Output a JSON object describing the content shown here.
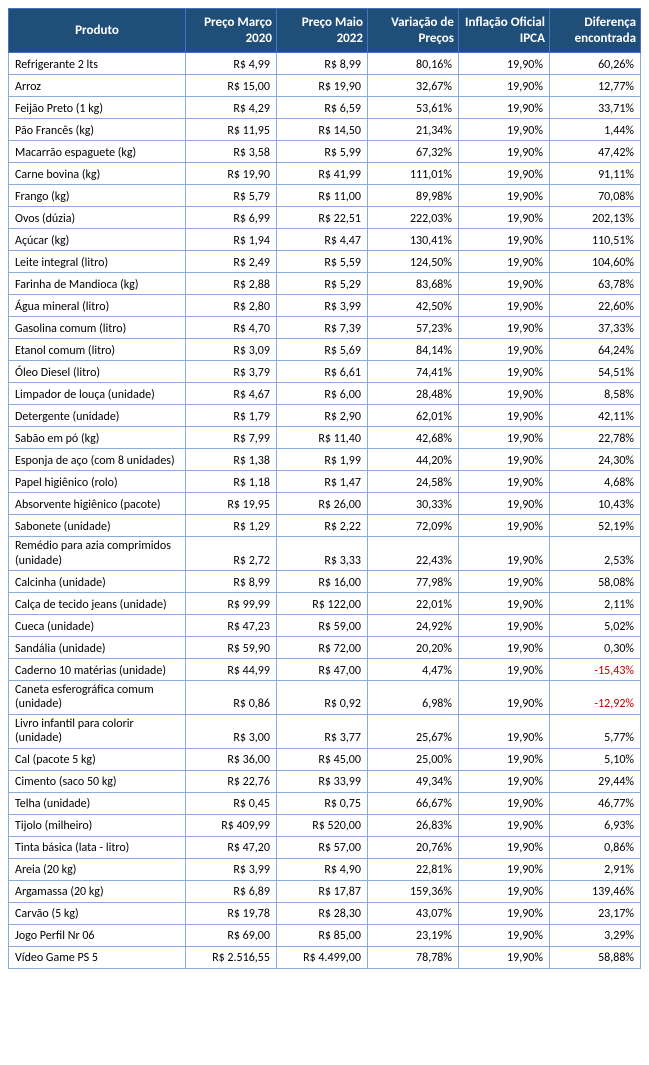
{
  "table": {
    "header_bg": "#1f4e79",
    "header_color": "#ffffff",
    "border_color": "#8ea9db",
    "negative_color": "#c00000",
    "columns": [
      "Produto",
      "Preço Março 2020",
      "Preço Maio 2022",
      "Variação de Preços",
      "Inflação Oficial IPCA",
      "Diferença encontrada"
    ],
    "rows": [
      {
        "produto": "Refrigerante 2 lts",
        "p2020": "R$ 4,99",
        "p2022": "R$ 8,99",
        "var": "80,16%",
        "ipca": "19,90%",
        "dif": "60,26%",
        "neg": false
      },
      {
        "produto": "Arroz",
        "p2020": "R$ 15,00",
        "p2022": "R$ 19,90",
        "var": "32,67%",
        "ipca": "19,90%",
        "dif": "12,77%",
        "neg": false
      },
      {
        "produto": "Feijão Preto (1 kg)",
        "p2020": "R$ 4,29",
        "p2022": "R$ 6,59",
        "var": "53,61%",
        "ipca": "19,90%",
        "dif": "33,71%",
        "neg": false
      },
      {
        "produto": "Pão Francês (kg)",
        "p2020": "R$ 11,95",
        "p2022": "R$ 14,50",
        "var": "21,34%",
        "ipca": "19,90%",
        "dif": "1,44%",
        "neg": false
      },
      {
        "produto": "Macarrão espaguete (kg)",
        "p2020": "R$ 3,58",
        "p2022": "R$ 5,99",
        "var": "67,32%",
        "ipca": "19,90%",
        "dif": "47,42%",
        "neg": false
      },
      {
        "produto": "Carne bovina (kg)",
        "p2020": "R$ 19,90",
        "p2022": "R$ 41,99",
        "var": "111,01%",
        "ipca": "19,90%",
        "dif": "91,11%",
        "neg": false
      },
      {
        "produto": "Frango (kg)",
        "p2020": "R$ 5,79",
        "p2022": "R$ 11,00",
        "var": "89,98%",
        "ipca": "19,90%",
        "dif": "70,08%",
        "neg": false
      },
      {
        "produto": "Ovos (dúzia)",
        "p2020": "R$ 6,99",
        "p2022": "R$ 22,51",
        "var": "222,03%",
        "ipca": "19,90%",
        "dif": "202,13%",
        "neg": false
      },
      {
        "produto": "Açúcar (kg)",
        "p2020": "R$ 1,94",
        "p2022": "R$ 4,47",
        "var": "130,41%",
        "ipca": "19,90%",
        "dif": "110,51%",
        "neg": false
      },
      {
        "produto": "Leite integral (litro)",
        "p2020": "R$ 2,49",
        "p2022": "R$ 5,59",
        "var": "124,50%",
        "ipca": "19,90%",
        "dif": "104,60%",
        "neg": false
      },
      {
        "produto": "Farinha de Mandioca (kg)",
        "p2020": "R$ 2,88",
        "p2022": "R$ 5,29",
        "var": "83,68%",
        "ipca": "19,90%",
        "dif": "63,78%",
        "neg": false
      },
      {
        "produto": "Água mineral (litro)",
        "p2020": "R$ 2,80",
        "p2022": "R$ 3,99",
        "var": "42,50%",
        "ipca": "19,90%",
        "dif": "22,60%",
        "neg": false
      },
      {
        "produto": "Gasolina comum (litro)",
        "p2020": "R$ 4,70",
        "p2022": "R$ 7,39",
        "var": "57,23%",
        "ipca": "19,90%",
        "dif": "37,33%",
        "neg": false
      },
      {
        "produto": "Etanol comum (litro)",
        "p2020": "R$ 3,09",
        "p2022": "R$ 5,69",
        "var": "84,14%",
        "ipca": "19,90%",
        "dif": "64,24%",
        "neg": false
      },
      {
        "produto": "Óleo Diesel (litro)",
        "p2020": "R$ 3,79",
        "p2022": "R$ 6,61",
        "var": "74,41%",
        "ipca": "19,90%",
        "dif": "54,51%",
        "neg": false
      },
      {
        "produto": "Limpador de louça (unidade)",
        "p2020": "R$ 4,67",
        "p2022": "R$ 6,00",
        "var": "28,48%",
        "ipca": "19,90%",
        "dif": "8,58%",
        "neg": false
      },
      {
        "produto": "Detergente (unidade)",
        "p2020": "R$ 1,79",
        "p2022": "R$ 2,90",
        "var": "62,01%",
        "ipca": "19,90%",
        "dif": "42,11%",
        "neg": false
      },
      {
        "produto": "Sabão em pó (kg)",
        "p2020": "R$ 7,99",
        "p2022": "R$ 11,40",
        "var": "42,68%",
        "ipca": "19,90%",
        "dif": "22,78%",
        "neg": false
      },
      {
        "produto": "Esponja de aço (com 8 unidades)",
        "p2020": "R$ 1,38",
        "p2022": "R$ 1,99",
        "var": "44,20%",
        "ipca": "19,90%",
        "dif": "24,30%",
        "neg": false
      },
      {
        "produto": "Papel higiênico (rolo)",
        "p2020": "R$ 1,18",
        "p2022": "R$ 1,47",
        "var": "24,58%",
        "ipca": "19,90%",
        "dif": "4,68%",
        "neg": false
      },
      {
        "produto": "Absorvente higiênico (pacote)",
        "p2020": "R$ 19,95",
        "p2022": "R$ 26,00",
        "var": "30,33%",
        "ipca": "19,90%",
        "dif": "10,43%",
        "neg": false
      },
      {
        "produto": "Sabonete (unidade)",
        "p2020": "R$ 1,29",
        "p2022": "R$ 2,22",
        "var": "72,09%",
        "ipca": "19,90%",
        "dif": "52,19%",
        "neg": false
      },
      {
        "produto": "Remédio para azia comprimidos (unidade)",
        "p2020": "R$ 2,72",
        "p2022": "R$ 3,33",
        "var": "22,43%",
        "ipca": "19,90%",
        "dif": "2,53%",
        "neg": false
      },
      {
        "produto": "Calcinha (unidade)",
        "p2020": "R$ 8,99",
        "p2022": "R$ 16,00",
        "var": "77,98%",
        "ipca": "19,90%",
        "dif": "58,08%",
        "neg": false
      },
      {
        "produto": "Calça de tecido jeans (unidade)",
        "p2020": "R$ 99,99",
        "p2022": "R$ 122,00",
        "var": "22,01%",
        "ipca": "19,90%",
        "dif": "2,11%",
        "neg": false
      },
      {
        "produto": "Cueca (unidade)",
        "p2020": "R$ 47,23",
        "p2022": "R$ 59,00",
        "var": "24,92%",
        "ipca": "19,90%",
        "dif": "5,02%",
        "neg": false
      },
      {
        "produto": "Sandália (unidade)",
        "p2020": "R$ 59,90",
        "p2022": "R$ 72,00",
        "var": "20,20%",
        "ipca": "19,90%",
        "dif": "0,30%",
        "neg": false
      },
      {
        "produto": "Caderno 10 matérias (unidade)",
        "p2020": "R$ 44,99",
        "p2022": "R$ 47,00",
        "var": "4,47%",
        "ipca": "19,90%",
        "dif": "-15,43%",
        "neg": true
      },
      {
        "produto": "Caneta esferográfica comum (unidade)",
        "p2020": "R$ 0,86",
        "p2022": "R$ 0,92",
        "var": "6,98%",
        "ipca": "19,90%",
        "dif": "-12,92%",
        "neg": true
      },
      {
        "produto": "Livro infantil para colorir (unidade)",
        "p2020": "R$ 3,00",
        "p2022": "R$ 3,77",
        "var": "25,67%",
        "ipca": "19,90%",
        "dif": "5,77%",
        "neg": false
      },
      {
        "produto": "Cal (pacote 5 kg)",
        "p2020": "R$ 36,00",
        "p2022": "R$ 45,00",
        "var": "25,00%",
        "ipca": "19,90%",
        "dif": "5,10%",
        "neg": false
      },
      {
        "produto": "Cimento (saco 50 kg)",
        "p2020": "R$ 22,76",
        "p2022": "R$ 33,99",
        "var": "49,34%",
        "ipca": "19,90%",
        "dif": "29,44%",
        "neg": false
      },
      {
        "produto": "Telha (unidade)",
        "p2020": "R$ 0,45",
        "p2022": "R$ 0,75",
        "var": "66,67%",
        "ipca": "19,90%",
        "dif": "46,77%",
        "neg": false
      },
      {
        "produto": "Tijolo (milheiro)",
        "p2020": "R$ 409,99",
        "p2022": "R$ 520,00",
        "var": "26,83%",
        "ipca": "19,90%",
        "dif": "6,93%",
        "neg": false
      },
      {
        "produto": "Tinta básica (lata - litro)",
        "p2020": "R$ 47,20",
        "p2022": "R$ 57,00",
        "var": "20,76%",
        "ipca": "19,90%",
        "dif": "0,86%",
        "neg": false
      },
      {
        "produto": "Areia (20 kg)",
        "p2020": "R$ 3,99",
        "p2022": "R$ 4,90",
        "var": "22,81%",
        "ipca": "19,90%",
        "dif": "2,91%",
        "neg": false
      },
      {
        "produto": "Argamassa (20 kg)",
        "p2020": "R$ 6,89",
        "p2022": "R$ 17,87",
        "var": "159,36%",
        "ipca": "19,90%",
        "dif": "139,46%",
        "neg": false
      },
      {
        "produto": "Carvão (5 kg)",
        "p2020": "R$ 19,78",
        "p2022": "R$ 28,30",
        "var": "43,07%",
        "ipca": "19,90%",
        "dif": "23,17%",
        "neg": false
      },
      {
        "produto": "Jogo Perfil Nr 06",
        "p2020": "R$ 69,00",
        "p2022": "R$ 85,00",
        "var": "23,19%",
        "ipca": "19,90%",
        "dif": "3,29%",
        "neg": false
      },
      {
        "produto": "Vídeo Game PS 5",
        "p2020": "R$ 2.516,55",
        "p2022": "R$ 4.499,00",
        "var": "78,78%",
        "ipca": "19,90%",
        "dif": "58,88%",
        "neg": false
      }
    ]
  }
}
